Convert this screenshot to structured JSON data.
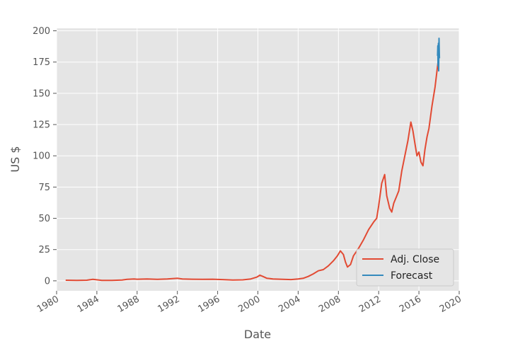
{
  "chart_data": {
    "type": "line",
    "title": "",
    "xlabel": "Date",
    "ylabel": "US $",
    "xlim": [
      1980,
      2020
    ],
    "ylim": [
      -8,
      202
    ],
    "x_ticks": [
      1980,
      1984,
      1988,
      1992,
      1996,
      2000,
      2004,
      2008,
      2012,
      2016,
      2020
    ],
    "x_tick_labels": [
      "1980",
      "1984",
      "1988",
      "1992",
      "1996",
      "2000",
      "2004",
      "2008",
      "2012",
      "2016",
      "2020"
    ],
    "y_ticks": [
      0,
      25,
      50,
      75,
      100,
      125,
      150,
      175,
      200
    ],
    "y_tick_labels": [
      "0",
      "25",
      "50",
      "75",
      "100",
      "125",
      "150",
      "175",
      "200"
    ],
    "grid": true,
    "legend": {
      "placement": "lower-right"
    },
    "colors": {
      "background": "#e5e5e5",
      "grid": "#ffffff",
      "adj_close": "#e24a33",
      "forecast": "#348abd"
    },
    "series": [
      {
        "name": "Adj. Close",
        "x": [
          1980.9,
          1982.0,
          1983.0,
          1983.6,
          1984.5,
          1985.5,
          1986.5,
          1987.0,
          1987.7,
          1988.0,
          1989.0,
          1990.0,
          1991.0,
          1992.0,
          1992.5,
          1993.5,
          1994.5,
          1995.5,
          1996.5,
          1997.5,
          1998.5,
          1999.3,
          1999.9,
          2000.2,
          2000.5,
          2000.9,
          2001.5,
          2002.5,
          2003.3,
          2004.0,
          2004.5,
          2005.0,
          2005.5,
          2006.0,
          2006.5,
          2007.0,
          2007.5,
          2007.9,
          2008.2,
          2008.5,
          2008.7,
          2008.9,
          2009.2,
          2009.5,
          2010.0,
          2010.5,
          2011.0,
          2011.5,
          2011.8,
          2012.0,
          2012.3,
          2012.6,
          2012.8,
          2013.1,
          2013.3,
          2013.5,
          2013.8,
          2014.0,
          2014.3,
          2014.6,
          2014.9,
          2015.2,
          2015.4,
          2015.6,
          2015.8,
          2016.0,
          2016.2,
          2016.4,
          2016.6,
          2016.8,
          2017.0,
          2017.3,
          2017.6,
          2017.9
        ],
        "values": [
          0.5,
          0.4,
          0.5,
          1.2,
          0.4,
          0.4,
          0.6,
          1.2,
          1.5,
          1.3,
          1.5,
          1.2,
          1.5,
          2.0,
          1.5,
          1.3,
          1.2,
          1.3,
          1.0,
          0.6,
          0.8,
          1.5,
          3.0,
          4.5,
          3.5,
          2.0,
          1.5,
          1.2,
          1.0,
          1.5,
          2.0,
          3.5,
          5.5,
          8.0,
          9.0,
          12.0,
          16.0,
          20.0,
          24.0,
          21.0,
          15.0,
          11.0,
          13.0,
          20.0,
          26.0,
          33.0,
          41.0,
          47.0,
          50.0,
          60.0,
          78.0,
          85.0,
          68.0,
          58.0,
          55.0,
          62.0,
          68.0,
          72.0,
          88.0,
          100.0,
          112.0,
          127.0,
          120.0,
          110.0,
          100.0,
          103.0,
          95.0,
          92.0,
          105.0,
          115.0,
          122.0,
          140.0,
          155.0,
          175.0
        ]
      },
      {
        "name": "Forecast",
        "x": [
          2017.85,
          2017.88,
          2017.9,
          2017.93,
          2017.96,
          2018.0,
          2018.04
        ],
        "values": [
          180.0,
          188.0,
          172.0,
          190.0,
          168.0,
          194.0,
          178.0
        ]
      }
    ]
  }
}
